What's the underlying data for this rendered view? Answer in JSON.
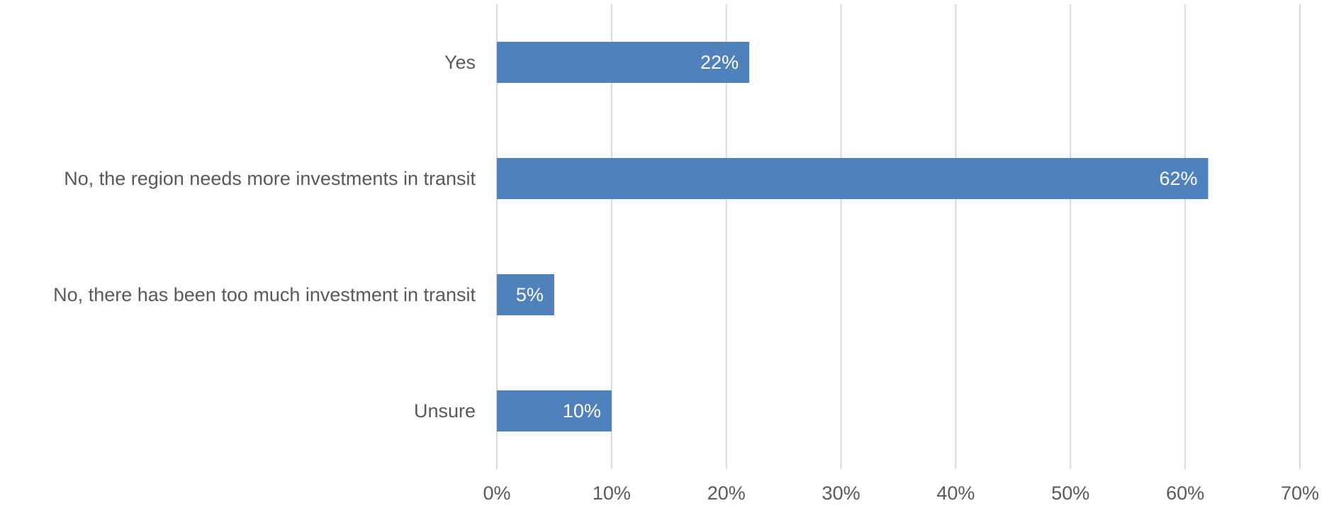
{
  "chart_data": {
    "type": "bar",
    "orientation": "horizontal",
    "categories": [
      "Yes",
      "No, the region needs more investments in transit",
      "No, there has been too much investment in transit",
      "Unsure"
    ],
    "values": [
      22,
      62,
      5,
      10
    ],
    "value_labels": [
      "22%",
      "62%",
      "5%",
      "10%"
    ],
    "unit": "%",
    "xlim": [
      0,
      70
    ],
    "xticks": [
      0,
      10,
      20,
      30,
      40,
      50,
      60,
      70
    ],
    "xtick_labels": [
      "0%",
      "10%",
      "20%",
      "30%",
      "40%",
      "50%",
      "60%",
      "70%"
    ],
    "title": "",
    "xlabel": "",
    "ylabel": "",
    "grid": "vertical",
    "legend": "none",
    "bar_color": "#4f81bd",
    "gridline_color": "#d9d9d9",
    "label_color": "#595959",
    "data_label_color": "#ffffff"
  }
}
